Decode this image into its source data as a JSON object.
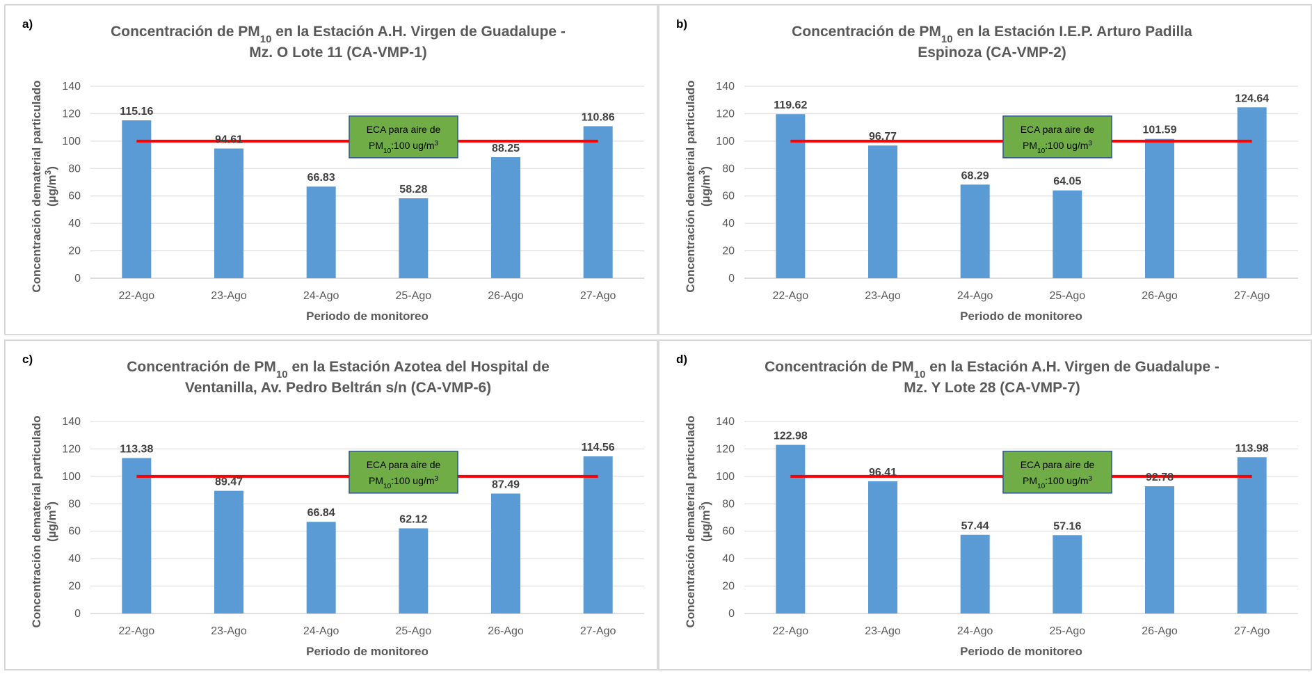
{
  "chart_data": [
    {
      "type": "bar",
      "panel_letter": "a)",
      "title_line1_parts": [
        "Concentración  de PM",
        "10",
        " en la Estación A.H. Virgen de Guadalupe  -"
      ],
      "title_line2": "Mz. O Lote 11 (CA-VMP-1)",
      "ylabel_line1": "Concentración dematerial particulado",
      "ylabel_line2_parts": [
        "(µg/m",
        "3",
        ")"
      ],
      "xlabel": "Periodo de monitoreo",
      "categories": [
        "22-Ago",
        "23-Ago",
        "24-Ago",
        "25-Ago",
        "26-Ago",
        "27-Ago"
      ],
      "values": [
        115.16,
        94.61,
        66.83,
        58.28,
        88.25,
        110.86
      ],
      "value_labels": [
        "115.16",
        "94.61",
        "66.83",
        "58.28",
        "88.25",
        "110.86"
      ],
      "ylim": [
        0,
        140
      ],
      "yticks": [
        0,
        20,
        40,
        60,
        80,
        100,
        120,
        140
      ],
      "grid": true,
      "reference_line": {
        "value": 100,
        "color": "#ff0000"
      },
      "annotation_line1": "ECA para aire de",
      "annotation_line2_parts": [
        "PM",
        "10",
        ":100 ug/m",
        "3"
      ],
      "bar_color": "#5b9bd5",
      "annotation_color": "#70ad47"
    },
    {
      "type": "bar",
      "panel_letter": "b)",
      "title_line1_parts": [
        "Concentración  de PM",
        "10",
        " en la Estación I.E.P. Arturo Padilla"
      ],
      "title_line2": "Espinoza (CA-VMP-2)",
      "ylabel_line1": "Concentración dematerial particulado",
      "ylabel_line2_parts": [
        "(µg/m",
        "3",
        ")"
      ],
      "xlabel": "Periodo de monitoreo",
      "categories": [
        "22-Ago",
        "23-Ago",
        "24-Ago",
        "25-Ago",
        "26-Ago",
        "27-Ago"
      ],
      "values": [
        119.62,
        96.77,
        68.29,
        64.05,
        101.59,
        124.64
      ],
      "value_labels": [
        "119.62",
        "96.77",
        "68.29",
        "64.05",
        "101.59",
        "124.64"
      ],
      "ylim": [
        0,
        140
      ],
      "yticks": [
        0,
        20,
        40,
        60,
        80,
        100,
        120,
        140
      ],
      "grid": true,
      "reference_line": {
        "value": 100,
        "color": "#ff0000"
      },
      "annotation_line1": "ECA para aire de",
      "annotation_line2_parts": [
        "PM",
        "10",
        ":100 ug/m",
        "3"
      ],
      "bar_color": "#5b9bd5",
      "annotation_color": "#70ad47"
    },
    {
      "type": "bar",
      "panel_letter": "c)",
      "title_line1_parts": [
        "Concentración  de PM",
        "10",
        " en la Estación Azotea del Hospital de"
      ],
      "title_line2": "Ventanilla, Av. Pedro Beltrán s/n (CA-VMP-6)",
      "ylabel_line1": "Concentración dematerial particulado",
      "ylabel_line2_parts": [
        "(µg/m",
        "3",
        ")"
      ],
      "xlabel": "Periodo de monitoreo",
      "categories": [
        "22-Ago",
        "23-Ago",
        "24-Ago",
        "25-Ago",
        "26-Ago",
        "27-Ago"
      ],
      "values": [
        113.38,
        89.47,
        66.84,
        62.12,
        87.49,
        114.56
      ],
      "value_labels": [
        "113.38",
        "89.47",
        "66.84",
        "62.12",
        "87.49",
        "114.56"
      ],
      "ylim": [
        0,
        140
      ],
      "yticks": [
        0,
        20,
        40,
        60,
        80,
        100,
        120,
        140
      ],
      "grid": true,
      "reference_line": {
        "value": 100,
        "color": "#ff0000"
      },
      "annotation_line1": "ECA para aire de",
      "annotation_line2_parts": [
        "PM",
        "10",
        ":100 ug/m",
        "3"
      ],
      "bar_color": "#5b9bd5",
      "annotation_color": "#70ad47"
    },
    {
      "type": "bar",
      "panel_letter": "d)",
      "title_line1_parts": [
        "Concentración  de PM",
        "10",
        " en la Estación A.H. Virgen de Guadalupe  -"
      ],
      "title_line2": "Mz. Y Lote 28 (CA-VMP-7)",
      "ylabel_line1": "Concentración dematerial particulado",
      "ylabel_line2_parts": [
        "(µg/m",
        "3",
        ")"
      ],
      "xlabel": "Periodo de monitoreo",
      "categories": [
        "22-Ago",
        "23-Ago",
        "24-Ago",
        "25-Ago",
        "26-Ago",
        "27-Ago"
      ],
      "values": [
        122.98,
        96.41,
        57.44,
        57.16,
        92.78,
        113.98
      ],
      "value_labels": [
        "122.98",
        "96.41",
        "57.44",
        "57.16",
        "92.78",
        "113.98"
      ],
      "ylim": [
        0,
        140
      ],
      "yticks": [
        0,
        20,
        40,
        60,
        80,
        100,
        120,
        140
      ],
      "grid": true,
      "reference_line": {
        "value": 100,
        "color": "#ff0000"
      },
      "annotation_line1": "ECA para aire de",
      "annotation_line2_parts": [
        "PM",
        "10",
        ":100 ug/m",
        "3"
      ],
      "bar_color": "#5b9bd5",
      "annotation_color": "#70ad47"
    }
  ]
}
